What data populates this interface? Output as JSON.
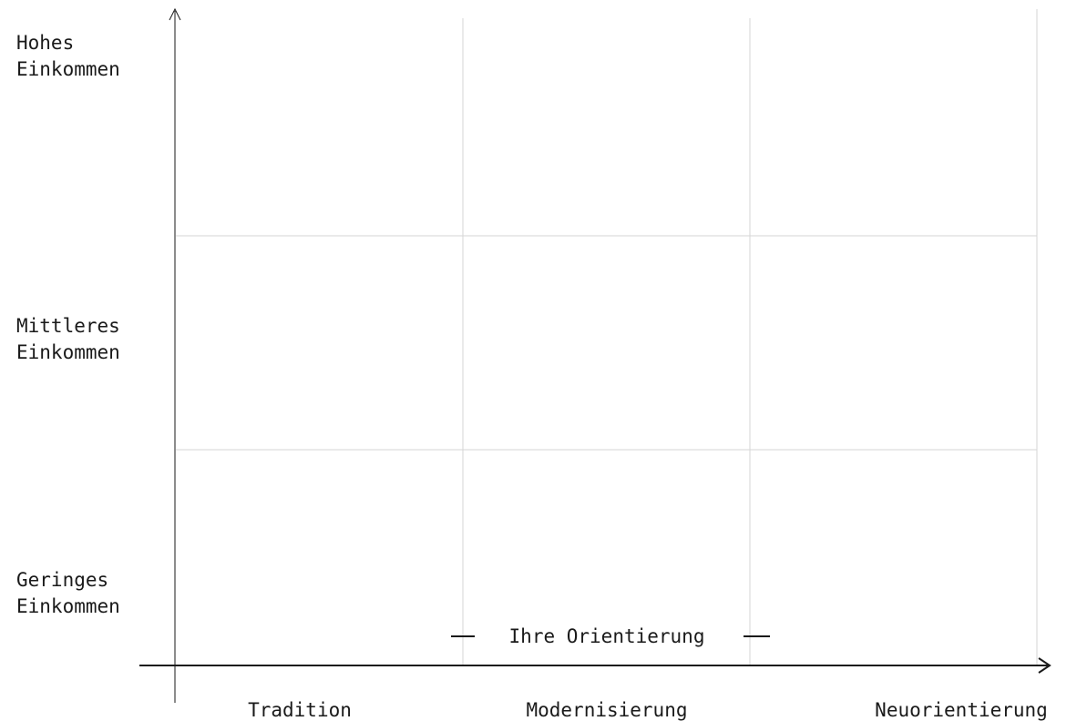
{
  "y_axis": {
    "labels": [
      [
        "Hohes",
        "Einkommen"
      ],
      [
        "Mittleres",
        "Einkommen"
      ],
      [
        "Geringes",
        "Einkommen"
      ]
    ]
  },
  "x_axis": {
    "labels": [
      "Tradition",
      "Modernisierung",
      "Neuorientierung"
    ],
    "title": "Ihre Orientierung"
  }
}
